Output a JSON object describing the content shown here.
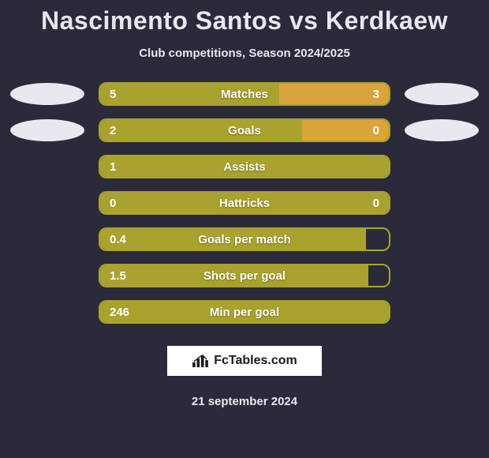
{
  "title": "Nascimento Santos vs Kerdkaew",
  "subtitle": "Club competitions, Season 2024/2025",
  "rows": [
    {
      "label": "Matches",
      "left": "5",
      "right": "3",
      "left_pct": 62,
      "right_pct": 38,
      "show_right_val": true,
      "side_ellipses": true
    },
    {
      "label": "Goals",
      "left": "2",
      "right": "0",
      "left_pct": 70,
      "right_pct": 30,
      "show_right_val": true,
      "side_ellipses": true
    },
    {
      "label": "Assists",
      "left": "1",
      "right": "",
      "left_pct": 100,
      "right_pct": 0,
      "show_right_val": false,
      "side_ellipses": false
    },
    {
      "label": "Hattricks",
      "left": "0",
      "right": "0",
      "left_pct": 100,
      "right_pct": 0,
      "show_right_val": true,
      "side_ellipses": false
    },
    {
      "label": "Goals per match",
      "left": "0.4",
      "right": "",
      "left_pct": 92,
      "right_pct": 0,
      "show_right_val": false,
      "side_ellipses": false
    },
    {
      "label": "Shots per goal",
      "left": "1.5",
      "right": "",
      "left_pct": 93,
      "right_pct": 0,
      "show_right_val": false,
      "side_ellipses": false
    },
    {
      "label": "Min per goal",
      "left": "246",
      "right": "",
      "left_pct": 100,
      "right_pct": 0,
      "show_right_val": false,
      "side_ellipses": false
    }
  ],
  "colors": {
    "bg": "#2a2a3a",
    "bar_left": "#a9a22f",
    "bar_right": "#d9a43a",
    "bar_border": "#a9a22f",
    "text": "#ffffff",
    "ellipse": "#e8e8f0"
  },
  "logo": {
    "text": "FcTables.com"
  },
  "date": "21 september 2024"
}
